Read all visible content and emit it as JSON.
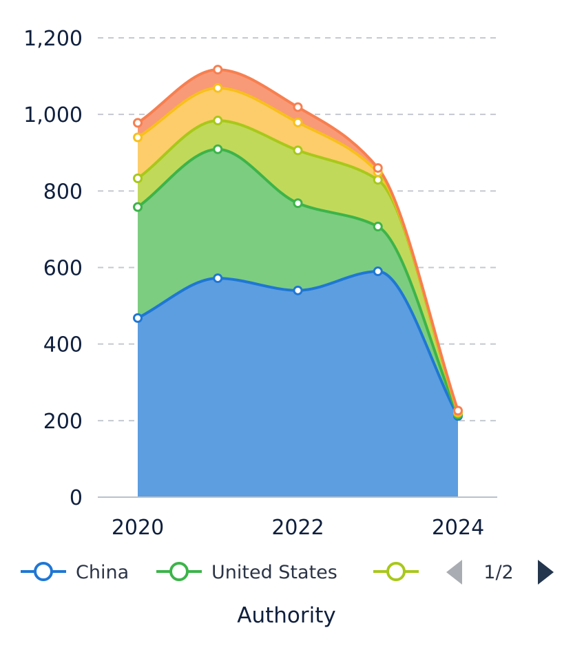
{
  "chart_data": {
    "type": "area",
    "stacked": true,
    "smooth": true,
    "x": [
      2020,
      2021,
      2022,
      2023,
      2024
    ],
    "x_tick_labels": [
      "2020",
      "2022",
      "2024"
    ],
    "y_tick_labels": [
      "0",
      "200",
      "400",
      "600",
      "800",
      "1,000",
      "1,200"
    ],
    "ylim": [
      0,
      1200
    ],
    "grid": true,
    "xlabel": "Authority",
    "legend_placement": "bottom",
    "series": [
      {
        "name": "China",
        "color": "#1f77d4",
        "fill": "#5c9ee0",
        "values": [
          468,
          572,
          540,
          590,
          212
        ]
      },
      {
        "name": "United States",
        "color": "#3cb44a",
        "fill": "#7ccd7f",
        "values": [
          290,
          337,
          228,
          117,
          4
        ]
      },
      {
        "color": "#a8c81a",
        "fill": "#c1d95a",
        "values": [
          75,
          75,
          138,
          122,
          4
        ]
      },
      {
        "color": "#f8c01c",
        "fill": "#fccd6a",
        "values": [
          107,
          85,
          73,
          20,
          2
        ]
      },
      {
        "color": "#f77f50",
        "fill": "#f89a78",
        "values": [
          38,
          48,
          40,
          11,
          4
        ]
      }
    ]
  },
  "legend": {
    "pager_text": "1/2",
    "visible_series": [
      0,
      1,
      2
    ]
  }
}
